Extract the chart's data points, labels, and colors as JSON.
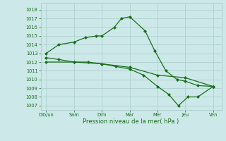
{
  "background_color": "#cce8e8",
  "grid_color": "#aacccc",
  "line_color": "#1a6e1a",
  "marker_color": "#1a6e1a",
  "xlabel": "Pression niveau de la mer( hPa )",
  "xtick_labels": [
    "Dib/un",
    "Sam",
    "Dim",
    "Mar",
    "Mer",
    "Jeu",
    "Ven"
  ],
  "ylim": [
    1006.5,
    1018.8
  ],
  "yticks": [
    1007,
    1008,
    1009,
    1010,
    1011,
    1012,
    1013,
    1014,
    1015,
    1016,
    1017,
    1018
  ],
  "series1_x": [
    0,
    0.45,
    1.0,
    1.4,
    1.8,
    2.0,
    2.45,
    2.7,
    3.0,
    3.55,
    3.9,
    4.3,
    4.7,
    5.0,
    5.45,
    6.0
  ],
  "series1_y": [
    1013.0,
    1014.0,
    1014.3,
    1014.8,
    1015.0,
    1015.0,
    1016.0,
    1017.0,
    1017.2,
    1015.6,
    1013.3,
    1011.0,
    1010.0,
    1009.8,
    1009.3,
    1009.2
  ],
  "series2_x": [
    0,
    0.45,
    1.0,
    1.5,
    2.0,
    2.5,
    3.0,
    3.5,
    4.0,
    4.4,
    4.75,
    5.1,
    5.45,
    6.0
  ],
  "series2_y": [
    1012.5,
    1012.3,
    1012.0,
    1012.0,
    1011.8,
    1011.5,
    1011.2,
    1010.5,
    1009.2,
    1008.3,
    1007.0,
    1008.0,
    1008.0,
    1009.2
  ],
  "series3_x": [
    0,
    1.0,
    2.0,
    3.0,
    4.0,
    5.0,
    6.0
  ],
  "series3_y": [
    1012.0,
    1012.0,
    1011.8,
    1011.4,
    1010.5,
    1010.2,
    1009.2
  ],
  "figsize": [
    3.2,
    2.0
  ],
  "dpi": 100
}
